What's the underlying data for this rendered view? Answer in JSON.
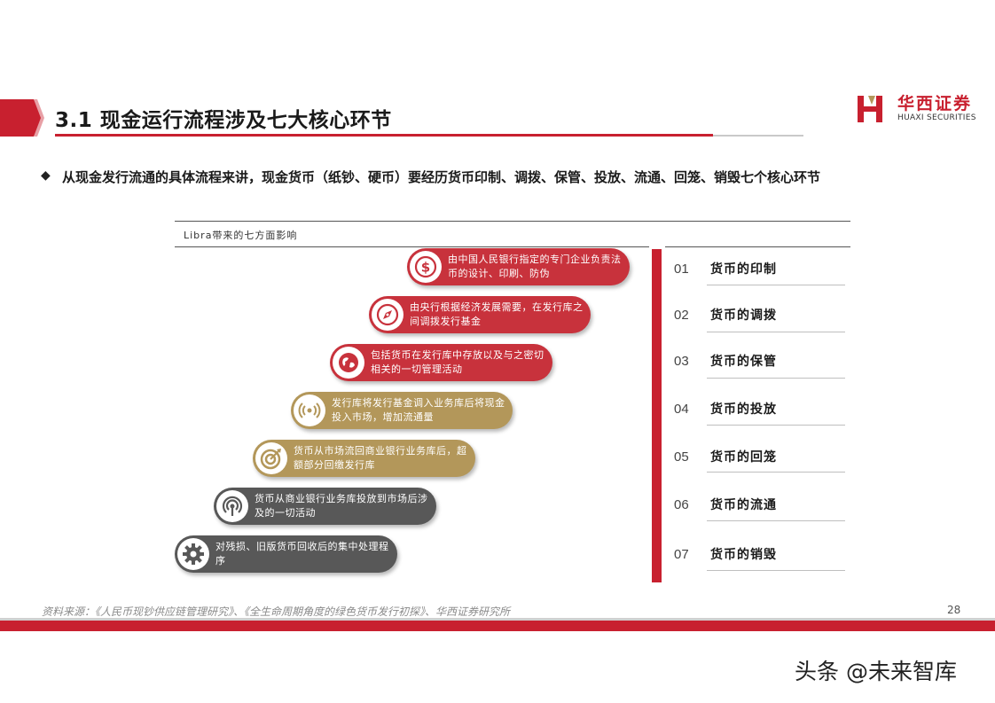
{
  "header": {
    "title": "3.1 现金运行流程涉及七大核心环节",
    "logo_cn": "华西证券",
    "logo_en": "HUAXI SECURITIES"
  },
  "bullet": {
    "text": "从现金发行流通的具体流程来讲，现金货币（纸钞、硬币）要经历货币印制、调拨、保管、投放、流通、回笼、销毁七个核心环节"
  },
  "figure": {
    "title": "Libra带来的七方面影响",
    "steps": [
      {
        "icon": "dollar-icon",
        "text": "由中国人民银行指定的专门企业负责法币的设计、印刷、防伪",
        "color": "#c8323c"
      },
      {
        "icon": "compass-icon",
        "text": "由央行根据经济发展需要，在发行库之间调拨发行基金",
        "color": "#c8323c"
      },
      {
        "icon": "globe-icon",
        "text": "包括货币在发行库中存放以及与之密切相关的一切管理活动",
        "color": "#c8323c"
      },
      {
        "icon": "broadcast-icon",
        "text": "发行库将发行基金调入业务库后将现金投入市场，增加流通量",
        "color": "#b3975a"
      },
      {
        "icon": "target-icon",
        "text": "货币从市场流回商业银行业务库后，超额部分回缴发行库",
        "color": "#b3975a"
      },
      {
        "icon": "signal-icon",
        "text": "货币从商业银行业务库投放到市场后涉及的一切活动",
        "color": "#585858"
      },
      {
        "icon": "gear-icon",
        "text": "对残损、旧版货币回收后的集中处理程序",
        "color": "#585858"
      }
    ],
    "items": [
      {
        "num": "01",
        "label": "货币的印制"
      },
      {
        "num": "02",
        "label": "货币的调拨"
      },
      {
        "num": "03",
        "label": "货币的保管"
      },
      {
        "num": "04",
        "label": "货币的投放"
      },
      {
        "num": "05",
        "label": "货币的回笼"
      },
      {
        "num": "06",
        "label": "货币的流通"
      },
      {
        "num": "07",
        "label": "货币的销毁"
      }
    ]
  },
  "footer": {
    "source": "资料来源：《人民币现钞供应链管理研究》、《全生命周期角度的绿色货币发行初探》、华西证券研究所",
    "page": "28"
  },
  "watermark": "头条 @未来智库",
  "colors": {
    "accent": "#c8202f",
    "gold": "#b3975a",
    "gray": "#585858"
  }
}
